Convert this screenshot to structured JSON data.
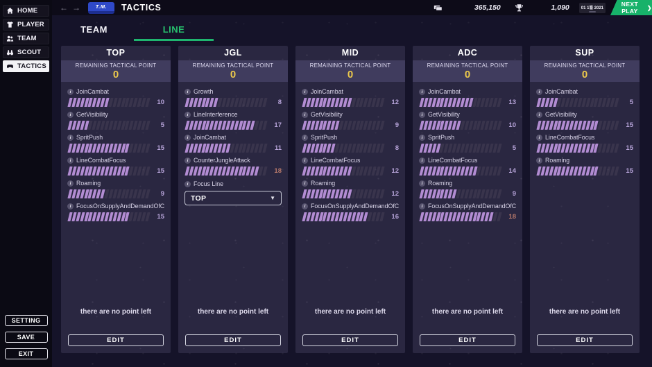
{
  "colors": {
    "accent_green": "#1fb56f",
    "bar_filled": "#b28cd2",
    "bar_empty": "#39344c",
    "remaining_value_yellow": "#ecc94b",
    "warm_value": "#b5786a"
  },
  "sidebar": {
    "items": [
      {
        "label": "HOME",
        "icon": "home-icon",
        "active": false
      },
      {
        "label": "PLAYER",
        "icon": "shirt-icon",
        "active": false
      },
      {
        "label": "TEAM",
        "icon": "team-icon",
        "active": false
      },
      {
        "label": "SCOUT",
        "icon": "binoculars-icon",
        "active": false
      },
      {
        "label": "TACTICS",
        "icon": "gamepad-icon",
        "active": true
      }
    ],
    "footer": [
      "SETTING",
      "SAVE",
      "EXIT"
    ]
  },
  "topbar": {
    "back_arrow": "←",
    "forward_arrow": "→",
    "logo": "T.M.",
    "title": "TACTICS",
    "money": "365,150",
    "trophies": "1,090",
    "date": "01 1월 2021",
    "next_play": "NEXT PLAY",
    "next_play_chevron": "❯"
  },
  "tabs": [
    {
      "label": "TEAM",
      "active": false
    },
    {
      "label": "LINE",
      "active": true
    }
  ],
  "shared": {
    "remaining_label": "REMAINING TACTICAL POINT",
    "no_points": "there are no point left",
    "edit": "EDIT",
    "bar_max": 20,
    "chevron_down": "▼"
  },
  "columns": [
    {
      "title": "TOP",
      "remaining": "0",
      "skills": [
        {
          "name": "JoinCambat",
          "value": 10
        },
        {
          "name": "GetVisibility",
          "value": 5
        },
        {
          "name": "SpritPush",
          "value": 15
        },
        {
          "name": "LineCombatFocus",
          "value": 15
        },
        {
          "name": "Roaming",
          "value": 9
        },
        {
          "name": "FocusOnSupplyAndDemandOfCs",
          "value": 15
        }
      ]
    },
    {
      "title": "JGL",
      "remaining": "0",
      "skills": [
        {
          "name": "Growth",
          "value": 8
        },
        {
          "name": "LineInterference",
          "value": 17
        },
        {
          "name": "JoinCambat",
          "value": 11
        },
        {
          "name": "CounterJungleAttack",
          "value": 18,
          "value_color": "#b5786a"
        }
      ],
      "dropdown": {
        "label": "Focus Line",
        "value": "TOP"
      }
    },
    {
      "title": "MID",
      "remaining": "0",
      "skills": [
        {
          "name": "JoinCambat",
          "value": 12
        },
        {
          "name": "GetVisibility",
          "value": 9
        },
        {
          "name": "SpritPush",
          "value": 8
        },
        {
          "name": "LineCombatFocus",
          "value": 12
        },
        {
          "name": "Roaming",
          "value": 12
        },
        {
          "name": "FocusOnSupplyAndDemandOfCs",
          "value": 16
        }
      ]
    },
    {
      "title": "ADC",
      "remaining": "0",
      "skills": [
        {
          "name": "JoinCambat",
          "value": 13
        },
        {
          "name": "GetVisibility",
          "value": 10
        },
        {
          "name": "SpritPush",
          "value": 5
        },
        {
          "name": "LineCombatFocus",
          "value": 14
        },
        {
          "name": "Roaming",
          "value": 9
        },
        {
          "name": "FocusOnSupplyAndDemandOfCs",
          "value": 18,
          "value_color": "#b5786a"
        }
      ]
    },
    {
      "title": "SUP",
      "remaining": "0",
      "skills": [
        {
          "name": "JoinCambat",
          "value": 5
        },
        {
          "name": "GetVisibility",
          "value": 15
        },
        {
          "name": "LineCombatFocus",
          "value": 15
        },
        {
          "name": "Roaming",
          "value": 15
        }
      ]
    }
  ]
}
